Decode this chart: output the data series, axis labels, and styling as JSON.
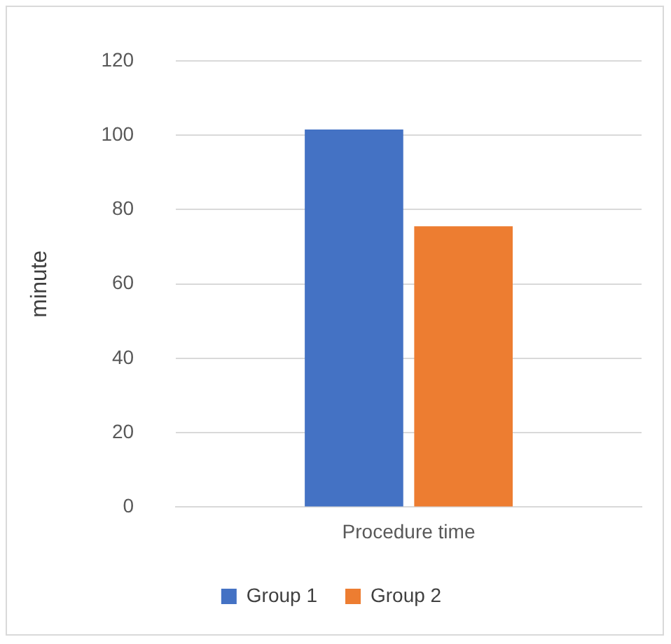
{
  "chart_data": {
    "type": "bar",
    "categories": [
      "Procedure time"
    ],
    "ylabel": "minute",
    "ylim": [
      0,
      120
    ],
    "yticks": [
      0,
      20,
      40,
      60,
      80,
      100,
      120
    ],
    "grid": "y",
    "legend": "bottom",
    "series": [
      {
        "name": "Group 1",
        "color": "#4472c4",
        "values": [
          101.5
        ]
      },
      {
        "name": "Group 2",
        "color": "#ed7d31",
        "values": [
          75.5
        ]
      }
    ]
  }
}
